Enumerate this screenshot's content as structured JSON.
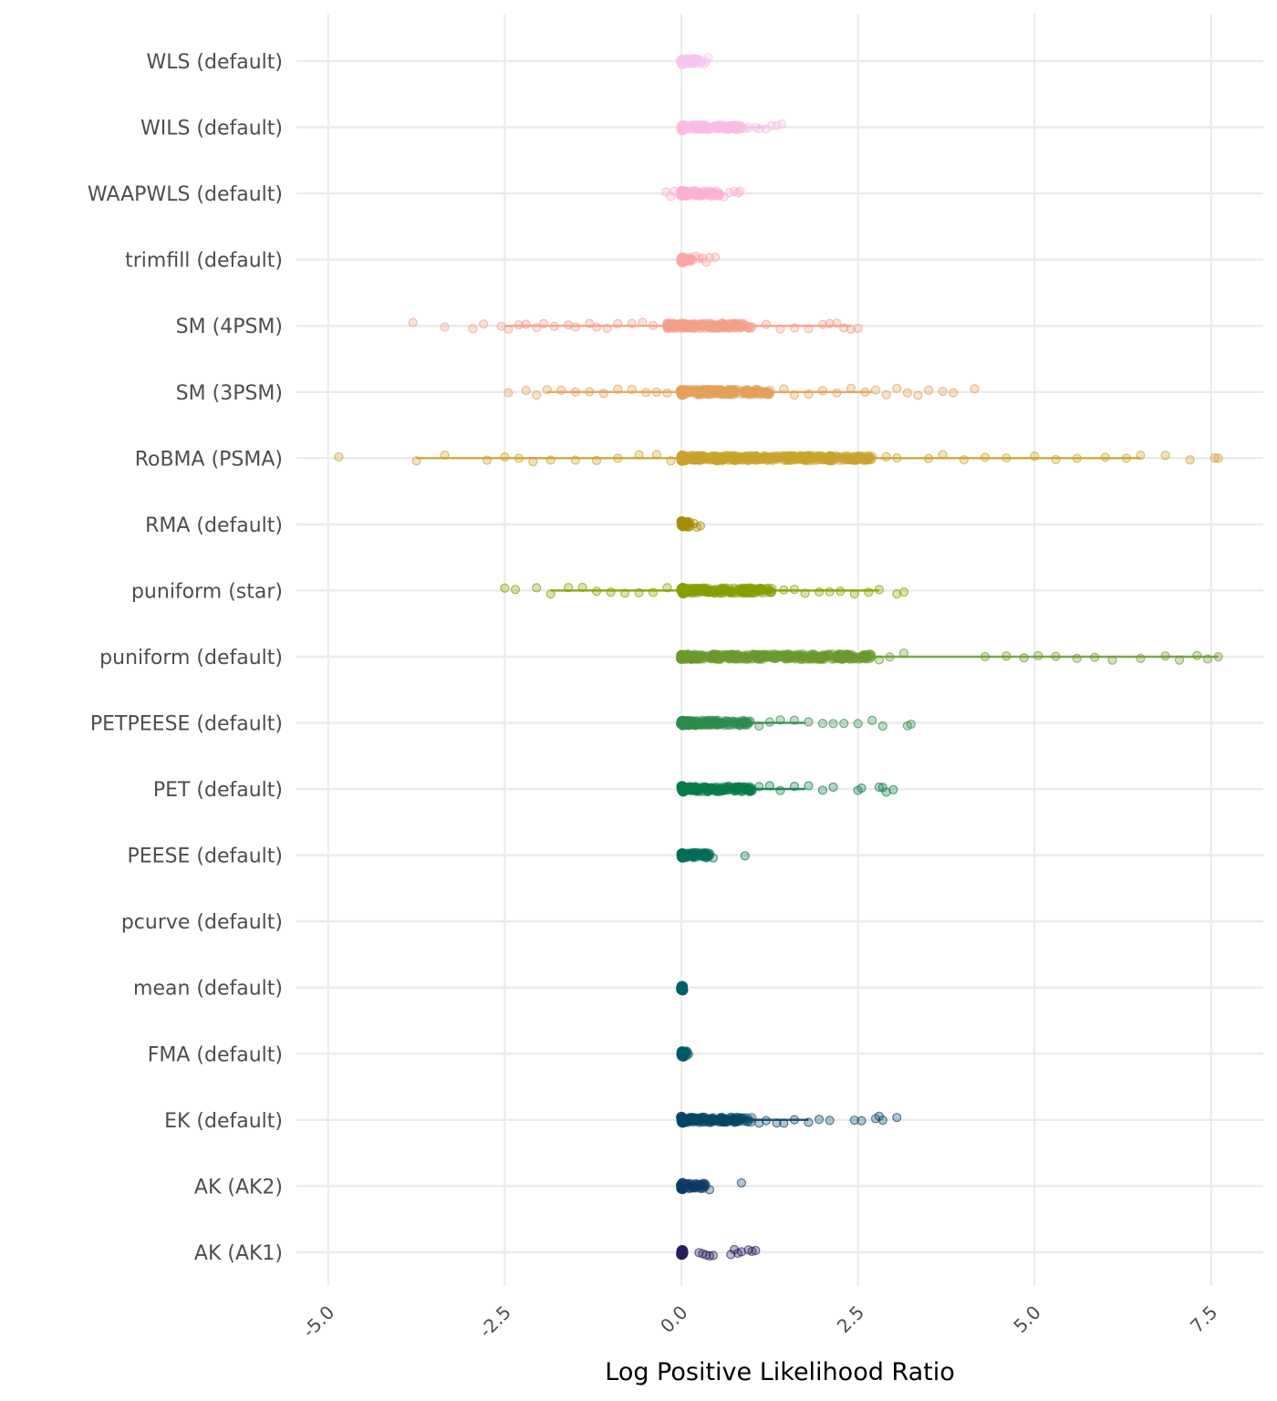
{
  "chart_data": {
    "type": "scatter",
    "subtype": "jittered strip plot with range lines",
    "title": "",
    "xlabel": "Log Positive Likelihood Ratio",
    "ylabel": "",
    "xlim": [
      -5.2,
      8.0
    ],
    "xticks": [
      -5.0,
      -2.5,
      0.0,
      2.5,
      5.0,
      7.5
    ],
    "xtick_labels": [
      "-5.0",
      "-2.5",
      "0.0",
      "2.5",
      "5.0",
      "7.5"
    ],
    "grid": true,
    "legend": "none",
    "series": [
      {
        "name": "WLS (default)",
        "color": "#F9C4F0",
        "min": 0.0,
        "max": 0.38,
        "line": [
          0.0,
          0.3
        ],
        "bulk": [
          0.0,
          0.3
        ],
        "outliers": [
          0.32,
          0.35,
          0.38
        ]
      },
      {
        "name": "WILS (default)",
        "color": "#F9BDE5",
        "min": -0.05,
        "max": 1.42,
        "line": [
          0.0,
          1.2
        ],
        "bulk": [
          0.0,
          0.85
        ],
        "outliers": [
          0.9,
          0.95,
          1.05,
          1.1,
          1.2,
          1.28,
          1.35,
          1.42
        ]
      },
      {
        "name": "WAAPWLS (default)",
        "color": "#FBB1D3",
        "min": -0.22,
        "max": 0.83,
        "line": [
          0.0,
          0.6
        ],
        "bulk": [
          0.0,
          0.55
        ],
        "outliers": [
          -0.22,
          -0.15,
          -0.1,
          0.6,
          0.68,
          0.75,
          0.8,
          0.83
        ]
      },
      {
        "name": "trimfill (default)",
        "color": "#FCA7A7",
        "min": 0.0,
        "max": 0.48,
        "line": [
          0.0,
          0.3
        ],
        "bulk": [
          0.0,
          0.15
        ],
        "outliers": [
          0.2,
          0.25,
          0.3,
          0.35,
          0.4,
          0.48
        ]
      },
      {
        "name": "SM (4PSM)",
        "color": "#F3A08A",
        "min": -3.8,
        "max": 2.5,
        "line": [
          -2.5,
          2.4
        ],
        "bulk": [
          -0.2,
          1.0
        ],
        "outliers": [
          -3.8,
          -3.35,
          -2.95,
          -2.8,
          -2.55,
          -2.45,
          -2.3,
          -2.2,
          -2.05,
          -1.95,
          -1.8,
          -1.6,
          -1.5,
          -1.3,
          -1.2,
          -1.05,
          -0.9,
          -0.7,
          -0.55,
          -0.4,
          1.2,
          1.4,
          1.6,
          1.8,
          2.0,
          2.1,
          2.2,
          2.3,
          2.4,
          2.5
        ]
      },
      {
        "name": "SM (3PSM)",
        "color": "#E4A05B",
        "min": -2.45,
        "max": 4.15,
        "line": [
          -1.9,
          2.7
        ],
        "bulk": [
          0.0,
          1.3
        ],
        "outliers": [
          -2.45,
          -2.2,
          -2.05,
          -1.9,
          -1.7,
          -1.5,
          -1.3,
          -1.1,
          -0.9,
          -0.7,
          -0.5,
          -0.35,
          -0.2,
          1.45,
          1.6,
          1.8,
          2.0,
          2.2,
          2.4,
          2.6,
          2.75,
          2.9,
          3.05,
          3.2,
          3.35,
          3.5,
          3.7,
          3.85,
          4.15
        ]
      },
      {
        "name": "RoBMA (PSMA)",
        "color": "#C9A32D",
        "min": -4.85,
        "max": 7.6,
        "line": [
          -3.75,
          6.5
        ],
        "bulk": [
          0.0,
          2.7
        ],
        "outliers": [
          -4.85,
          -3.75,
          -3.35,
          -2.75,
          -2.5,
          -2.3,
          -2.1,
          -1.85,
          -1.5,
          -1.2,
          -0.9,
          -0.6,
          -0.35,
          -0.15,
          2.9,
          3.05,
          3.5,
          3.7,
          4.0,
          4.3,
          4.6,
          5.0,
          5.3,
          5.6,
          6.0,
          6.3,
          6.5,
          6.85,
          7.2,
          7.55,
          7.6
        ]
      },
      {
        "name": "RMA (default)",
        "color": "#A48E0A",
        "min": 0.0,
        "max": 0.27,
        "line": [
          0.0,
          0.2
        ],
        "bulk": [
          0.0,
          0.12
        ],
        "outliers": [
          0.18,
          0.22,
          0.27
        ]
      },
      {
        "name": "puniform (star)",
        "color": "#84A000",
        "min": -2.5,
        "max": 3.15,
        "line": [
          -1.85,
          2.8
        ],
        "bulk": [
          0.0,
          1.3
        ],
        "outliers": [
          -2.5,
          -2.35,
          -2.05,
          -1.85,
          -1.6,
          -1.4,
          -1.2,
          -1.0,
          -0.8,
          -0.6,
          -0.4,
          -0.2,
          1.45,
          1.6,
          1.75,
          1.95,
          2.1,
          2.25,
          2.45,
          2.65,
          2.8,
          3.05,
          3.15
        ]
      },
      {
        "name": "puniform (default)",
        "color": "#6A9A2E",
        "min": 0.0,
        "max": 7.6,
        "line": [
          0.0,
          7.6
        ],
        "bulk": [
          0.0,
          2.7
        ],
        "outliers": [
          2.8,
          2.95,
          3.15,
          4.3,
          4.6,
          4.85,
          5.05,
          5.3,
          5.6,
          5.85,
          6.1,
          6.5,
          6.85,
          7.05,
          7.3,
          7.45,
          7.6
        ]
      },
      {
        "name": "PETPEESE (default)",
        "color": "#2E8B4B",
        "min": 0.0,
        "max": 3.25,
        "line": [
          0.0,
          1.75
        ],
        "bulk": [
          0.0,
          1.0
        ],
        "outliers": [
          1.1,
          1.25,
          1.4,
          1.6,
          1.8,
          2.0,
          2.15,
          2.3,
          2.5,
          2.7,
          2.85,
          3.2,
          3.25
        ]
      },
      {
        "name": "PET (default)",
        "color": "#067B49",
        "min": 0.0,
        "max": 3.0,
        "line": [
          0.0,
          1.75
        ],
        "bulk": [
          0.0,
          1.0
        ],
        "outliers": [
          1.1,
          1.25,
          1.4,
          1.6,
          1.8,
          2.0,
          2.15,
          2.5,
          2.55,
          2.8,
          2.85,
          2.9,
          3.0
        ]
      },
      {
        "name": "PEESE (default)",
        "color": "#006D57",
        "min": 0.0,
        "max": 0.9,
        "line": [
          0.0,
          0.4
        ],
        "bulk": [
          0.0,
          0.4
        ],
        "outliers": [
          0.45,
          0.9
        ]
      },
      {
        "name": "pcurve (default)",
        "color": "#006A63",
        "min": null,
        "max": null,
        "line": null,
        "bulk": null,
        "outliers": []
      },
      {
        "name": "mean (default)",
        "color": "#006168",
        "min": 0.0,
        "max": 0.02,
        "line": [
          0.0,
          0.02
        ],
        "bulk": [
          0.0,
          0.02
        ],
        "outliers": []
      },
      {
        "name": "FMA (default)",
        "color": "#00596B",
        "min": 0.0,
        "max": 0.1,
        "line": [
          0.0,
          0.08
        ],
        "bulk": [
          0.0,
          0.08
        ],
        "outliers": [
          0.1
        ]
      },
      {
        "name": "EK (default)",
        "color": "#054566",
        "min": 0.0,
        "max": 3.05,
        "line": [
          0.0,
          1.8
        ],
        "bulk": [
          0.0,
          1.0
        ],
        "outliers": [
          1.1,
          1.2,
          1.35,
          1.45,
          1.6,
          1.8,
          1.95,
          2.1,
          2.45,
          2.55,
          2.75,
          2.8,
          2.85,
          3.05
        ]
      },
      {
        "name": "AK (AK2)",
        "color": "#0F3A68",
        "min": 0.0,
        "max": 0.85,
        "line": [
          0.0,
          0.35
        ],
        "bulk": [
          0.0,
          0.35
        ],
        "outliers": [
          0.4,
          0.85
        ]
      },
      {
        "name": "AK (AK1)",
        "color": "#2A1B5E",
        "min": 0.0,
        "max": 1.05,
        "line": [
          0.0,
          0.0
        ],
        "bulk": [
          0.0,
          0.03
        ],
        "outliers": [
          0.25,
          0.3,
          0.35,
          0.4,
          0.45,
          0.7,
          0.75,
          0.8,
          0.85,
          0.95,
          1.0,
          1.05
        ]
      }
    ]
  }
}
